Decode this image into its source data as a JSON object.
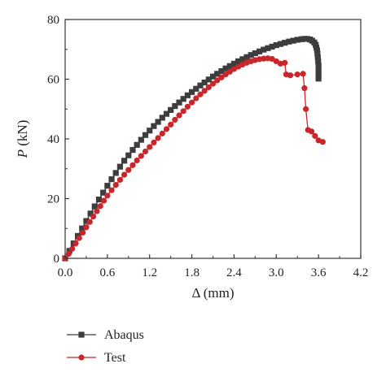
{
  "chart_data": {
    "type": "line",
    "xlabel": "Δ (mm)",
    "ylabel_italic": "P",
    "ylabel_rest": " (kN)",
    "xlim": [
      0,
      4.2
    ],
    "ylim": [
      0,
      80
    ],
    "x_ticks": [
      "0.0",
      "0.6",
      "1.2",
      "1.8",
      "2.4",
      "3.0",
      "3.6",
      "4.2"
    ],
    "y_ticks": [
      "0",
      "20",
      "40",
      "60",
      "80"
    ],
    "grid": false,
    "legend_position": "bottom",
    "series": [
      {
        "name": "Abaqus",
        "color": "#3d3d3d",
        "marker": "square",
        "points": [
          [
            0.0,
            0.0
          ],
          [
            0.06,
            2.5
          ],
          [
            0.12,
            5.0
          ],
          [
            0.18,
            7.5
          ],
          [
            0.24,
            10.0
          ],
          [
            0.3,
            12.5
          ],
          [
            0.36,
            15.0
          ],
          [
            0.42,
            17.4
          ],
          [
            0.48,
            19.7
          ],
          [
            0.54,
            22.0
          ],
          [
            0.6,
            24.3
          ],
          [
            0.66,
            26.5
          ],
          [
            0.72,
            28.6
          ],
          [
            0.78,
            30.7
          ],
          [
            0.84,
            32.7
          ],
          [
            0.9,
            34.5
          ],
          [
            0.96,
            36.3
          ],
          [
            1.02,
            38.0
          ],
          [
            1.08,
            39.7
          ],
          [
            1.14,
            41.3
          ],
          [
            1.2,
            42.8
          ],
          [
            1.26,
            44.3
          ],
          [
            1.32,
            45.7
          ],
          [
            1.38,
            47.1
          ],
          [
            1.44,
            48.4
          ],
          [
            1.5,
            49.7
          ],
          [
            1.56,
            51.0
          ],
          [
            1.62,
            52.2
          ],
          [
            1.68,
            53.4
          ],
          [
            1.74,
            54.6
          ],
          [
            1.8,
            55.7
          ],
          [
            1.86,
            56.8
          ],
          [
            1.92,
            57.9
          ],
          [
            1.98,
            58.9
          ],
          [
            2.04,
            59.9
          ],
          [
            2.1,
            60.9
          ],
          [
            2.16,
            61.8
          ],
          [
            2.22,
            62.7
          ],
          [
            2.28,
            63.6
          ],
          [
            2.34,
            64.4
          ],
          [
            2.4,
            65.2
          ],
          [
            2.46,
            66.0
          ],
          [
            2.52,
            66.7
          ],
          [
            2.58,
            67.4
          ],
          [
            2.64,
            68.1
          ],
          [
            2.7,
            68.7
          ],
          [
            2.76,
            69.3
          ],
          [
            2.82,
            69.9
          ],
          [
            2.88,
            70.4
          ],
          [
            2.94,
            70.9
          ],
          [
            3.0,
            71.4
          ],
          [
            3.06,
            71.8
          ],
          [
            3.12,
            72.2
          ],
          [
            3.18,
            72.6
          ],
          [
            3.24,
            72.9
          ],
          [
            3.3,
            73.2
          ],
          [
            3.36,
            73.4
          ],
          [
            3.4,
            73.5
          ],
          [
            3.44,
            73.5
          ],
          [
            3.48,
            73.3
          ],
          [
            3.51,
            72.9
          ],
          [
            3.54,
            72.3
          ],
          [
            3.56,
            71.5
          ],
          [
            3.57,
            70.6
          ],
          [
            3.58,
            69.6
          ],
          [
            3.585,
            68.5
          ],
          [
            3.59,
            67.3
          ],
          [
            3.595,
            66.0
          ],
          [
            3.6,
            64.6
          ],
          [
            3.6,
            63.1
          ],
          [
            3.6,
            61.6
          ],
          [
            3.6,
            60.2
          ]
        ]
      },
      {
        "name": "Test",
        "color": "#c8262b",
        "marker": "circle",
        "points": [
          [
            0.0,
            0.0
          ],
          [
            0.05,
            1.5
          ],
          [
            0.1,
            3.2
          ],
          [
            0.15,
            5.0
          ],
          [
            0.2,
            6.8
          ],
          [
            0.25,
            8.6
          ],
          [
            0.3,
            10.4
          ],
          [
            0.35,
            12.2
          ],
          [
            0.4,
            14.0
          ],
          [
            0.45,
            15.8
          ],
          [
            0.5,
            17.5
          ],
          [
            0.55,
            19.3
          ],
          [
            0.6,
            21.0
          ],
          [
            0.66,
            22.8
          ],
          [
            0.72,
            24.6
          ],
          [
            0.78,
            26.3
          ],
          [
            0.84,
            28.0
          ],
          [
            0.9,
            29.6
          ],
          [
            0.96,
            31.2
          ],
          [
            1.02,
            32.8
          ],
          [
            1.08,
            34.3
          ],
          [
            1.14,
            35.8
          ],
          [
            1.2,
            37.3
          ],
          [
            1.26,
            38.8
          ],
          [
            1.32,
            40.3
          ],
          [
            1.38,
            41.8
          ],
          [
            1.44,
            43.3
          ],
          [
            1.5,
            44.8
          ],
          [
            1.56,
            46.4
          ],
          [
            1.62,
            47.9
          ],
          [
            1.68,
            49.3
          ],
          [
            1.74,
            50.8
          ],
          [
            1.8,
            52.2
          ],
          [
            1.86,
            53.6
          ],
          [
            1.92,
            54.9
          ],
          [
            1.98,
            56.1
          ],
          [
            2.04,
            57.3
          ],
          [
            2.1,
            58.5
          ],
          [
            2.16,
            59.6
          ],
          [
            2.22,
            60.6
          ],
          [
            2.28,
            61.6
          ],
          [
            2.34,
            62.5
          ],
          [
            2.4,
            63.4
          ],
          [
            2.46,
            64.2
          ],
          [
            2.52,
            64.9
          ],
          [
            2.58,
            65.5
          ],
          [
            2.64,
            66.0
          ],
          [
            2.7,
            66.4
          ],
          [
            2.76,
            66.7
          ],
          [
            2.82,
            66.9
          ],
          [
            2.88,
            67.0
          ],
          [
            2.94,
            66.8
          ],
          [
            3.0,
            66.0
          ],
          [
            3.06,
            65.2
          ],
          [
            3.12,
            65.5
          ],
          [
            3.14,
            61.6
          ],
          [
            3.2,
            61.3
          ],
          [
            3.3,
            61.6
          ],
          [
            3.38,
            61.8
          ],
          [
            3.4,
            57.0
          ],
          [
            3.42,
            50.0
          ],
          [
            3.45,
            43.0
          ],
          [
            3.5,
            42.5
          ],
          [
            3.55,
            41.0
          ],
          [
            3.6,
            39.5
          ],
          [
            3.66,
            39.0
          ]
        ]
      }
    ]
  }
}
